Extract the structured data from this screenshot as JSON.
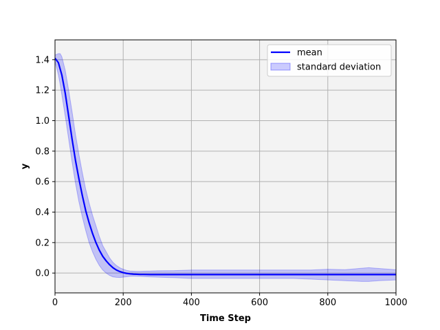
{
  "chart_data": {
    "type": "line",
    "title": "",
    "xlabel": "Time Step",
    "ylabel": "y",
    "xlim": [
      0,
      1000
    ],
    "ylim": [
      -0.13,
      1.53
    ],
    "grid": true,
    "legend_position": "top-right",
    "x_ticks": [
      0,
      200,
      400,
      600,
      800,
      1000
    ],
    "x_tick_labels": [
      "0",
      "200",
      "400",
      "600",
      "800",
      "1000"
    ],
    "y_ticks": [
      0.0,
      0.2,
      0.4,
      0.6,
      0.8,
      1.0,
      1.2,
      1.4
    ],
    "y_tick_labels": [
      "0.0",
      "0.2",
      "0.4",
      "0.6",
      "0.8",
      "1.0",
      "1.2",
      "1.4"
    ],
    "background_color": "#f3f3f3",
    "grid_color": "#b0b0b0",
    "series": [
      {
        "name": "mean",
        "kind": "line",
        "color": "#0000ff",
        "x": [
          0,
          10,
          20,
          30,
          40,
          50,
          60,
          70,
          80,
          90,
          100,
          110,
          120,
          130,
          140,
          150,
          160,
          170,
          180,
          190,
          200,
          210,
          220,
          230,
          240,
          250,
          260,
          280,
          300,
          350,
          400,
          450,
          500,
          550,
          600,
          650,
          700,
          750,
          800,
          850,
          900,
          950,
          1000
        ],
        "y": [
          1.41,
          1.38,
          1.3,
          1.18,
          1.03,
          0.88,
          0.74,
          0.62,
          0.51,
          0.41,
          0.33,
          0.26,
          0.2,
          0.15,
          0.11,
          0.08,
          0.055,
          0.035,
          0.02,
          0.01,
          0.003,
          -0.002,
          -0.005,
          -0.007,
          -0.008,
          -0.009,
          -0.009,
          -0.01,
          -0.01,
          -0.01,
          -0.01,
          -0.01,
          -0.01,
          -0.01,
          -0.01,
          -0.01,
          -0.01,
          -0.01,
          -0.01,
          -0.01,
          -0.01,
          -0.01,
          -0.01
        ]
      },
      {
        "name": "standard deviation",
        "kind": "band",
        "color": "#0000ff",
        "opacity": 0.2,
        "x": [
          0,
          10,
          15,
          20,
          30,
          40,
          50,
          60,
          70,
          80,
          90,
          100,
          110,
          120,
          130,
          140,
          150,
          160,
          170,
          180,
          190,
          200,
          210,
          220,
          230,
          240,
          250,
          260,
          280,
          300,
          350,
          400,
          450,
          500,
          550,
          600,
          650,
          700,
          750,
          800,
          850,
          900,
          920,
          950,
          1000
        ],
        "upper": [
          1.43,
          1.44,
          1.44,
          1.42,
          1.33,
          1.2,
          1.06,
          0.91,
          0.78,
          0.66,
          0.55,
          0.46,
          0.38,
          0.31,
          0.24,
          0.18,
          0.14,
          0.1,
          0.07,
          0.05,
          0.035,
          0.025,
          0.018,
          0.013,
          0.012,
          0.011,
          0.011,
          0.012,
          0.013,
          0.015,
          0.016,
          0.02,
          0.02,
          0.02,
          0.02,
          0.02,
          0.02,
          0.02,
          0.02,
          0.025,
          0.022,
          0.032,
          0.035,
          0.03,
          0.022
        ],
        "lower": [
          1.39,
          1.3,
          1.24,
          1.17,
          1.03,
          0.88,
          0.73,
          0.59,
          0.47,
          0.37,
          0.28,
          0.2,
          0.14,
          0.09,
          0.05,
          0.02,
          0.0,
          -0.015,
          -0.025,
          -0.028,
          -0.029,
          -0.027,
          -0.024,
          -0.021,
          -0.02,
          -0.021,
          -0.022,
          -0.023,
          -0.025,
          -0.027,
          -0.03,
          -0.035,
          -0.035,
          -0.035,
          -0.035,
          -0.035,
          -0.035,
          -0.035,
          -0.04,
          -0.045,
          -0.05,
          -0.055,
          -0.055,
          -0.05,
          -0.045
        ]
      }
    ]
  }
}
